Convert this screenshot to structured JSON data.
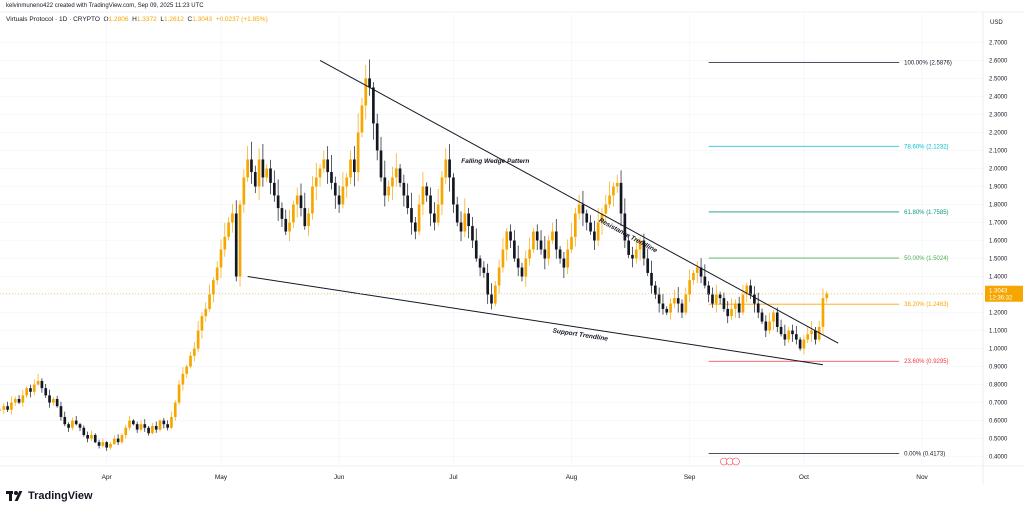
{
  "header": {
    "credit": "kelvinmuneno422 created with TradingView.com, Sep 09, 2025 11:23 UTC",
    "symbol": "Virtuals Protocol · 1D · CRYPTO",
    "ohlc": [
      {
        "label": "O",
        "value": "1.2806"
      },
      {
        "label": "H",
        "value": "1.3372"
      },
      {
        "label": "L",
        "value": "1.2612"
      },
      {
        "label": "C",
        "value": "1.3043"
      },
      {
        "label": "",
        "value": "+0.0237 (+1.85%)"
      }
    ]
  },
  "footer": {
    "brand": "TradingView"
  },
  "colors": {
    "up": "#f7a600",
    "down": "#131722",
    "grid": "#f0f3fa",
    "axis_text": "#131722"
  },
  "chart_data": {
    "type": "candlestick",
    "currency": "USD",
    "ylim": [
      0.37,
      2.78
    ],
    "y_ticks": [
      0.4,
      0.5,
      0.6,
      0.7,
      0.8,
      0.9,
      1.0,
      1.1,
      1.2,
      1.3,
      1.4,
      1.5,
      1.6,
      1.7,
      1.8,
      1.9,
      2.0,
      2.1,
      2.2,
      2.3,
      2.4,
      2.5,
      2.6,
      2.7
    ],
    "y_tick_labels": [
      "0.4000",
      "0.5000",
      "0.6000",
      "0.7000",
      "0.8000",
      "0.9000",
      "1.0000",
      "1.1000",
      "1.2000",
      "1.3000",
      "1.4000",
      "1.5000",
      "1.6000",
      "1.7000",
      "1.8000",
      "1.9000",
      "2.0000",
      "2.1000",
      "2.2000",
      "2.3000",
      "2.4000",
      "2.5000",
      "2.6000",
      "2.7000"
    ],
    "x_start": "2025-03-04",
    "x_end": "2025-11-17",
    "month_ticks": [
      {
        "label": "Apr",
        "date": "2025-04-01"
      },
      {
        "label": "May",
        "date": "2025-05-01"
      },
      {
        "label": "Jun",
        "date": "2025-06-01"
      },
      {
        "label": "Jul",
        "date": "2025-07-01"
      },
      {
        "label": "Aug",
        "date": "2025-08-01"
      },
      {
        "label": "Sep",
        "date": "2025-09-01"
      },
      {
        "label": "Oct",
        "date": "2025-10-01"
      },
      {
        "label": "Nov",
        "date": "2025-11-01"
      }
    ],
    "last_price": {
      "value": 1.3043,
      "label": "1.3043",
      "countdown": "12:36:32"
    },
    "candle_start": "2025-03-04",
    "closes": [
      0.66,
      0.68,
      0.66,
      0.7,
      0.72,
      0.7,
      0.74,
      0.78,
      0.76,
      0.8,
      0.82,
      0.78,
      0.74,
      0.7,
      0.72,
      0.68,
      0.62,
      0.58,
      0.56,
      0.6,
      0.58,
      0.56,
      0.52,
      0.5,
      0.52,
      0.48,
      0.46,
      0.48,
      0.45,
      0.47,
      0.5,
      0.48,
      0.52,
      0.56,
      0.6,
      0.58,
      0.55,
      0.58,
      0.56,
      0.53,
      0.57,
      0.55,
      0.6,
      0.58,
      0.56,
      0.62,
      0.7,
      0.8,
      0.86,
      0.9,
      0.96,
      1.0,
      1.1,
      1.18,
      1.22,
      1.3,
      1.38,
      1.45,
      1.55,
      1.62,
      1.7,
      1.75,
      1.4,
      1.8,
      1.95,
      2.05,
      1.98,
      1.9,
      2.05,
      1.95,
      2.0,
      1.92,
      1.85,
      1.78,
      1.72,
      1.65,
      1.7,
      1.8,
      1.85,
      1.78,
      1.68,
      1.75,
      1.9,
      1.95,
      2.0,
      2.05,
      1.98,
      1.92,
      1.85,
      1.8,
      1.9,
      1.95,
      2.05,
      1.98,
      2.2,
      2.35,
      2.5,
      2.45,
      2.25,
      2.1,
      1.95,
      1.85,
      1.9,
      1.95,
      2.0,
      1.92,
      1.85,
      1.78,
      1.7,
      1.65,
      1.8,
      1.9,
      1.85,
      1.75,
      1.7,
      1.8,
      1.95,
      2.05,
      1.95,
      1.8,
      1.7,
      1.65,
      1.75,
      1.68,
      1.6,
      1.5,
      1.45,
      1.42,
      1.3,
      1.25,
      1.35,
      1.45,
      1.55,
      1.65,
      1.6,
      1.5,
      1.45,
      1.4,
      1.5,
      1.55,
      1.65,
      1.6,
      1.55,
      1.5,
      1.6,
      1.65,
      1.55,
      1.5,
      1.45,
      1.55,
      1.62,
      1.75,
      1.8,
      1.75,
      1.7,
      1.65,
      1.6,
      1.7,
      1.75,
      1.8,
      1.85,
      1.9,
      1.92,
      1.75,
      1.6,
      1.52,
      1.5,
      1.55,
      1.6,
      1.5,
      1.42,
      1.35,
      1.3,
      1.25,
      1.22,
      1.2,
      1.25,
      1.28,
      1.25,
      1.2,
      1.3,
      1.38,
      1.42,
      1.45,
      1.4,
      1.35,
      1.3,
      1.25,
      1.3,
      1.28,
      1.22,
      1.18,
      1.22,
      1.25,
      1.2,
      1.3,
      1.35,
      1.3,
      1.25,
      1.2,
      1.15,
      1.1,
      1.15,
      1.2,
      1.12,
      1.08,
      1.05,
      1.1,
      1.08,
      1.05,
      1.0,
      1.05,
      1.08,
      1.1,
      1.05,
      1.12,
      1.28,
      1.3043
    ]
  },
  "annotations": {
    "pattern_label": "Falling Wedge Pattern",
    "resistance": {
      "label": "Resistance Trendline",
      "start": {
        "date": "2025-05-27",
        "value": 2.6
      },
      "end": {
        "date": "2025-10-10",
        "value": 1.03
      }
    },
    "support": {
      "label": "Support Trendline",
      "start": {
        "date": "2025-05-08",
        "value": 1.4
      },
      "end": {
        "date": "2025-10-06",
        "value": 0.91
      }
    },
    "fib_start": "2025-09-06",
    "fib_end": "2025-10-26",
    "fib_levels": [
      {
        "label": "100.00% (2.5876)",
        "value": 2.5876,
        "color": "#131722"
      },
      {
        "label": "78.60% (2.1232)",
        "value": 2.1232,
        "color": "#00bcd4"
      },
      {
        "label": "61.80% (1.7585)",
        "value": 1.7585,
        "color": "#089981"
      },
      {
        "label": "50.00% (1.5024)",
        "value": 1.5024,
        "color": "#4caf50"
      },
      {
        "label": "38.20% (1.2463)",
        "value": 1.2463,
        "color": "#f7a600"
      },
      {
        "label": "23.60% (0.9295)",
        "value": 0.9295,
        "color": "#f23645"
      },
      {
        "label": "0.00% (0.4173)",
        "value": 0.4173,
        "color": "#131722"
      }
    ]
  }
}
